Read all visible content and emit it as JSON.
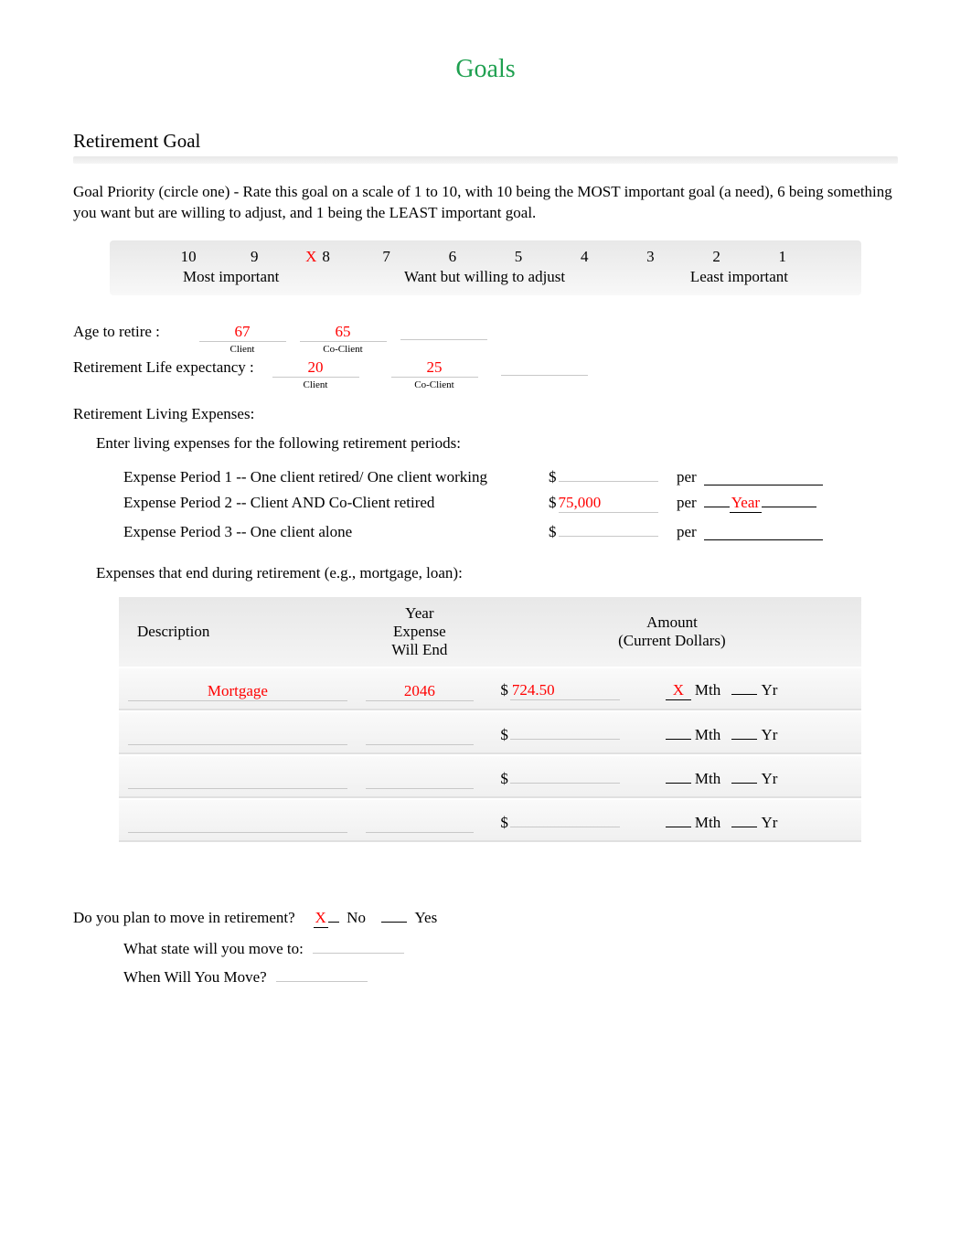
{
  "title": "Goals",
  "title_color": "#1fa050",
  "section": {
    "heading": "Retirement Goal",
    "priority_intro": "Goal Priority   (circle one) - Rate this goal on a scale of 1 to 10, with 10 being the MOST important goal (a need), 6 being something you want but are willing to adjust, and 1 being the LEAST important goal.",
    "scale": {
      "numbers": [
        "10",
        "9",
        "8",
        "7",
        "6",
        "5",
        "4",
        "3",
        "2",
        "1"
      ],
      "selected_mark": "X",
      "selected_index": 2,
      "label_most": "Most important",
      "label_mid": "Want but willing to adjust",
      "label_least": "Least important"
    }
  },
  "age_to_retire": {
    "label": "Age to retire :",
    "client_label": "Client",
    "coclient_label": "Co-Client",
    "client_value": "67",
    "coclient_value": "65"
  },
  "life_exp": {
    "label": "Retirement Life expectancy  :",
    "client_label": "Client",
    "coclient_label": "Co-Client",
    "client_value": "20",
    "coclient_value": "25"
  },
  "living_expenses": {
    "heading": "Retirement Living Expenses:",
    "intro": "Enter living expenses for the following retirement periods:",
    "rows": [
      {
        "label": "Expense Period 1 -- One client retired/ One client working",
        "amount": "",
        "per": ""
      },
      {
        "label": "Expense Period 2 -- Client AND Co-Client retired",
        "amount": "75,000",
        "per": "Year"
      },
      {
        "label": "Expense Period 3 -- One client alone",
        "amount": "",
        "per": ""
      }
    ],
    "per_label": "per"
  },
  "expenses_end": {
    "intro": "Expenses that end during retirement (e.g., mortgage, loan):",
    "headers": {
      "desc": "Description",
      "year": "Year\nExpense\nWill End",
      "amount": "Amount\n(Current Dollars)"
    },
    "mth_label": "Mth",
    "yr_label": "Yr",
    "rows": [
      {
        "desc": "Mortgage",
        "year": "2046",
        "amount": "724.50",
        "mth": "X",
        "yr": ""
      },
      {
        "desc": "",
        "year": "",
        "amount": "",
        "mth": "",
        "yr": ""
      },
      {
        "desc": "",
        "year": "",
        "amount": "",
        "mth": "",
        "yr": ""
      },
      {
        "desc": "",
        "year": "",
        "amount": "",
        "mth": "",
        "yr": ""
      }
    ]
  },
  "move": {
    "question": "Do you plan to move in retirement?",
    "no_label": "No",
    "yes_label": "Yes",
    "no_mark": "X",
    "yes_mark": "",
    "state_label": "What state will you move to:",
    "state_value": "",
    "when_label": "When Will You Move?",
    "when_value": ""
  },
  "colors": {
    "fill": "#ff0000",
    "title": "#1fa050",
    "underline": "#c8c8c8"
  }
}
